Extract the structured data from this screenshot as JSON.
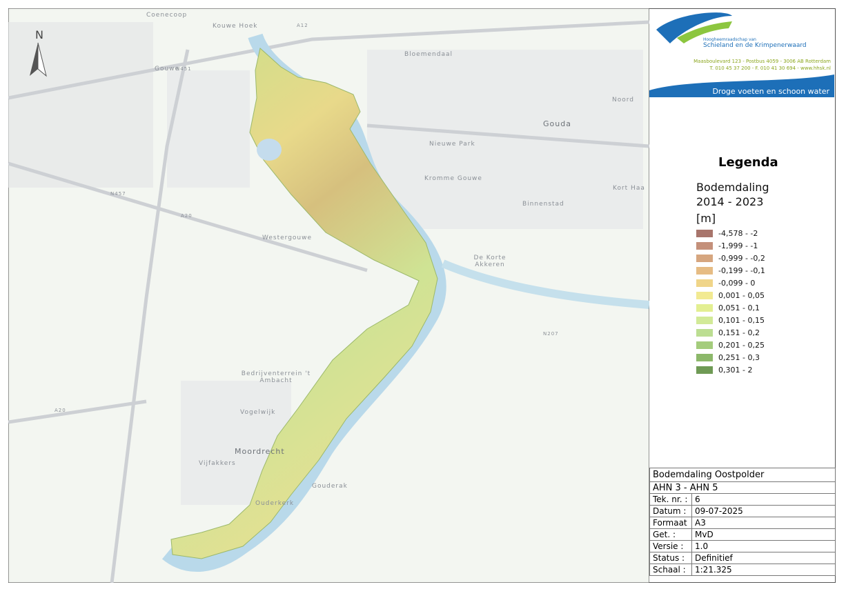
{
  "logo": {
    "org_line1": "Hoogheemraadschap van",
    "org_line2": "Schieland en de Krimpenerwaard",
    "address": "Maasboulevard 123 - Postbus 4059 - 3006 AB Rotterdam",
    "contact": "T. 010 45 37 200 - F. 010 41 30 694 - www.hhsk.nl",
    "slogan": "Droge voeten en schoon water"
  },
  "north_arrow": "N",
  "map_labels": [
    "Coenecoop",
    "Kouwe Hoek",
    "A12",
    "Bloemendaal",
    "Gouwe",
    "N451",
    "Gouda",
    "Noord",
    "Nieuwe Park",
    "Kromme Gouwe",
    "Kort Haa",
    "Binnenstad",
    "N457",
    "A20",
    "Westergouwe",
    "De Korte Akkeren",
    "N207",
    "Bedrijventerrein 't Ambacht",
    "Vogelwijk",
    "A20",
    "Moordrecht",
    "Vijfakkers",
    "Gouderak",
    "Ouderkerk"
  ],
  "legend": {
    "title": "Legenda",
    "layer_title": "Bodemdaling 2014 - 2023",
    "unit": "[m]",
    "items": [
      {
        "label": "-4,578 - -2",
        "color": "#a8756c"
      },
      {
        "label": "-1,999 - -1",
        "color": "#c4907a"
      },
      {
        "label": "-0,999 - -0,2",
        "color": "#d6a67f"
      },
      {
        "label": "-0,199 - -0,1",
        "color": "#e6bc84"
      },
      {
        "label": "-0,099 - 0",
        "color": "#f0d589"
      },
      {
        "label": "0,001 - 0,05",
        "color": "#f2ea92"
      },
      {
        "label": "0,051 - 0,1",
        "color": "#e3ef92"
      },
      {
        "label": "0,101 - 0,15",
        "color": "#d2ea98"
      },
      {
        "label": "0,151 - 0,2",
        "color": "#bcde92"
      },
      {
        "label": "0,201 - 0,25",
        "color": "#a4cc7c"
      },
      {
        "label": "0,251 - 0,3",
        "color": "#8cb86a"
      },
      {
        "label": "0,301 - 2",
        "color": "#6f9a55"
      }
    ]
  },
  "title_block": {
    "title": "Bodemdaling Oostpolder",
    "subtitle": "AHN 3 - AHN 5",
    "rows": [
      [
        "Tek. nr. :",
        "6"
      ],
      [
        "Datum :",
        "09-07-2025"
      ],
      [
        "Formaat",
        "A3"
      ],
      [
        "Get. :",
        "MvD"
      ],
      [
        "Versie :",
        "1.0"
      ],
      [
        "Status :",
        "Definitief"
      ],
      [
        "Schaal :",
        "1:21.325"
      ]
    ]
  }
}
